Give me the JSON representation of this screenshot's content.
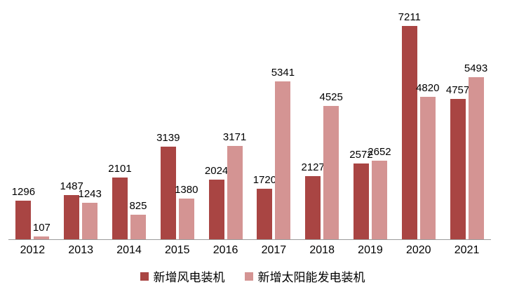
{
  "chart_data": {
    "type": "bar",
    "title": "",
    "xlabel": "",
    "ylabel": "",
    "categories": [
      "2012",
      "2013",
      "2014",
      "2015",
      "2016",
      "2017",
      "2018",
      "2019",
      "2020",
      "2021"
    ],
    "series": [
      {
        "name": "新增风电装机",
        "color": "#A94543",
        "values": [
          1296,
          1487,
          2101,
          3139,
          2024,
          1720,
          2127,
          2572,
          7211,
          4757
        ]
      },
      {
        "name": "新增太阳能发电装机",
        "color": "#D49493",
        "values": [
          107,
          1243,
          825,
          1380,
          3171,
          5341,
          4525,
          2652,
          4820,
          5493
        ]
      }
    ],
    "ylim": [
      0,
      7600
    ],
    "grid": false,
    "y_axis_visible": false,
    "legend_position": "bottom",
    "axis_line_color": "#9A9A9A",
    "label_color": "#000000",
    "background_color": "#FFFFFF"
  }
}
